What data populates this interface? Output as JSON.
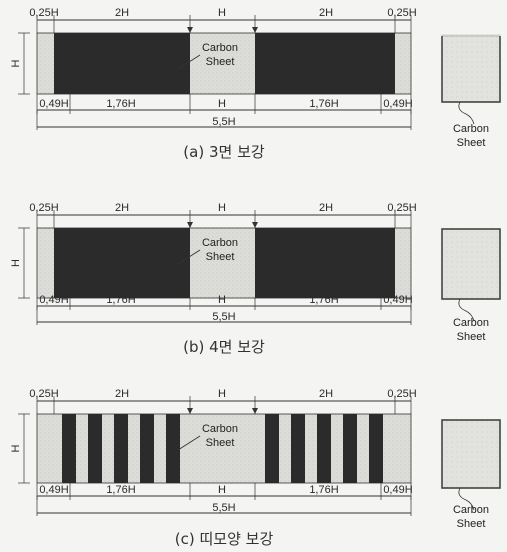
{
  "panels": [
    {
      "id": "a",
      "type": "full",
      "caption": "(a) 3면 보강",
      "top_dims": [
        "0,25H",
        "2H",
        "H",
        "2H",
        "0,25H"
      ],
      "bottom_dims": [
        "0,49H",
        "1,76H",
        "H",
        "1,76H",
        "0,49H"
      ],
      "total": "5,5H",
      "height_label": "H",
      "sheet_label": [
        "Carbon",
        "Sheet"
      ],
      "section_label": [
        "Carbon",
        "Sheet"
      ],
      "section_wrap": "3-side"
    },
    {
      "id": "b",
      "type": "full",
      "caption": "(b) 4면 보강",
      "top_dims": [
        "0,25H",
        "2H",
        "H",
        "2H",
        "0,25H"
      ],
      "bottom_dims": [
        "0,49H",
        "1,76H",
        "H",
        "1,76H",
        "0,49H"
      ],
      "total": "5,5H",
      "height_label": "H",
      "sheet_label": [
        "Carbon",
        "Sheet"
      ],
      "section_label": [
        "Carbon",
        "Sheet"
      ],
      "section_wrap": "4-side"
    },
    {
      "id": "c",
      "type": "strip",
      "caption": "(c) 띠모양 보강",
      "top_dims": [
        "0,25H",
        "2H",
        "H",
        "2H",
        "0,25H"
      ],
      "bottom_dims": [
        "0,49H",
        "1,76H",
        "H",
        "1,76H",
        "0,49H"
      ],
      "total": "5,5H",
      "height_label": "H",
      "sheet_label": [
        "Carbon",
        "Sheet"
      ],
      "section_label": [
        "Carbon",
        "Sheet"
      ],
      "section_wrap": "4-side"
    }
  ],
  "colors": {
    "carbon_sheet": "#2b2b2b",
    "concrete": "#d8d8d5",
    "line": "#333333"
  }
}
